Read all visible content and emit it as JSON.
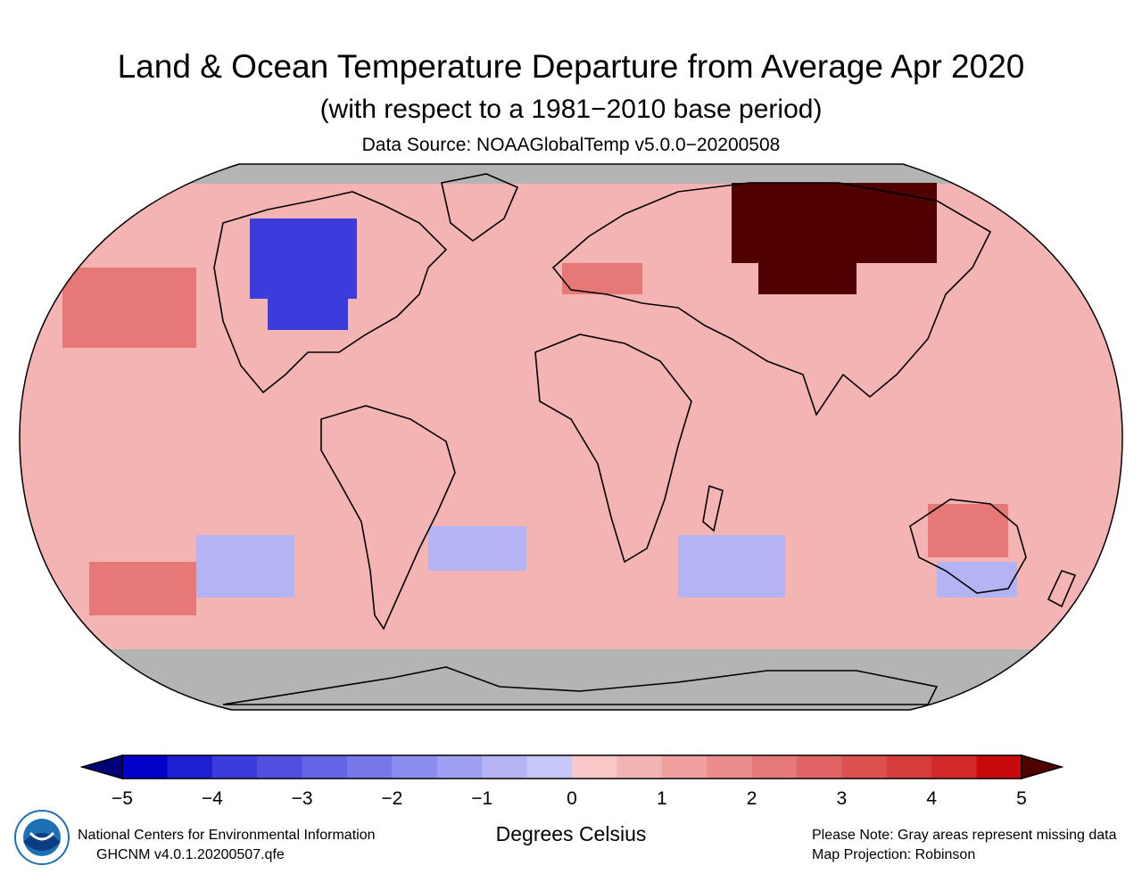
{
  "header": {
    "title": "Land & Ocean Temperature Departure from Average Apr 2020",
    "subtitle": "(with respect to a 1981−2010 base period)",
    "source": "Data Source: NOAAGlobalTemp v5.0.0−20200508"
  },
  "legend": {
    "units_label": "Degrees Celsius",
    "ticks": [
      "−5",
      "−4",
      "−3",
      "−2",
      "−1",
      "0",
      "1",
      "2",
      "3",
      "4",
      "5"
    ],
    "min": -5,
    "max": 5,
    "step": 0.5,
    "colors": [
      "#0000c8",
      "#1e1ed2",
      "#3c3cdc",
      "#5050e0",
      "#6464e6",
      "#7878ea",
      "#8c8cee",
      "#a0a0f2",
      "#b4b4f5",
      "#c8c8f8",
      "#fac8c8",
      "#f5b4b4",
      "#f0a0a0",
      "#eb8c8c",
      "#e67878",
      "#e16464",
      "#dc5050",
      "#d73c3c",
      "#d22828",
      "#c80a0a"
    ],
    "under_color": "#000078",
    "over_color": "#500000",
    "missing_color": "#b4b4b4"
  },
  "footer": {
    "org": "National Centers for Environmental Information",
    "dataset": "GHCNM v4.0.1.20200507.qfe",
    "note": "Please Note: Gray areas represent missing data",
    "projection": "Map Projection: Robinson",
    "logo_icon": "noaa-logo-icon"
  },
  "map": {
    "projection": "Robinson",
    "base_color": "#f5b4b4",
    "regions": [
      {
        "name": "north-america-cold",
        "anomaly": -4
      },
      {
        "name": "siberia-warm",
        "anomaly": 5
      },
      {
        "name": "europe-warm",
        "anomaly": 2
      },
      {
        "name": "australia-warm",
        "anomaly": 2
      },
      {
        "name": "south-atlantic-cool",
        "anomaly": -1
      },
      {
        "name": "indian-ocean-cool",
        "anomaly": -1
      },
      {
        "name": "south-pacific-cool",
        "anomaly": -1
      },
      {
        "name": "north-pacific-warm",
        "anomaly": 2
      }
    ]
  }
}
